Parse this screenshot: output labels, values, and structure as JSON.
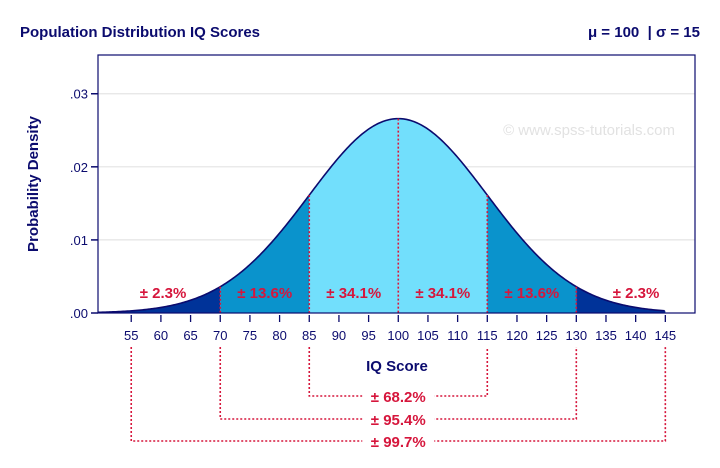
{
  "header": {
    "title": "Population Distribution IQ Scores",
    "params": "μ = 100  | σ = 15"
  },
  "watermark": "© www.spss-tutorials.com",
  "colors": {
    "tail": "#003399",
    "mid": "#0a93cc",
    "center": "#72dffc",
    "text": "#0b0b6e",
    "annotation": "#d6163c"
  },
  "chart_data": {
    "type": "area",
    "title": "Population Distribution IQ Scores",
    "subtitle": "μ = 100  | σ = 15",
    "distribution": {
      "family": "normal",
      "mean": 100,
      "sd": 15
    },
    "xlabel": "IQ Score",
    "ylabel": "Probability Density",
    "xlim": [
      49.4,
      150
    ],
    "ylim": [
      0,
      0.0353
    ],
    "x_ticks": [
      55,
      60,
      65,
      70,
      75,
      80,
      85,
      90,
      95,
      100,
      105,
      110,
      115,
      120,
      125,
      130,
      135,
      140,
      145
    ],
    "y_ticks": [
      {
        "value": 0,
        "label": ".00"
      },
      {
        "value": 0.01,
        "label": ".01"
      },
      {
        "value": 0.02,
        "label": ".02"
      },
      {
        "value": 0.03,
        "label": ".03"
      }
    ],
    "grid": "horizontal",
    "regions": [
      {
        "from": 49.4,
        "to": 70,
        "color": "tail",
        "label": "± 2.3%"
      },
      {
        "from": 70,
        "to": 85,
        "color": "mid",
        "label": "± 13.6%"
      },
      {
        "from": 85,
        "to": 100,
        "color": "center",
        "label": "± 34.1%"
      },
      {
        "from": 100,
        "to": 115,
        "color": "center",
        "label": "± 34.1%"
      },
      {
        "from": 115,
        "to": 130,
        "color": "mid",
        "label": "± 13.6%"
      },
      {
        "from": 130,
        "to": 145,
        "color": "tail",
        "label": "± 2.3%"
      }
    ],
    "dividers": [
      70,
      85,
      100,
      115,
      130
    ],
    "brackets": [
      {
        "from": 85,
        "to": 115,
        "label": "± 68.2%"
      },
      {
        "from": 70,
        "to": 130,
        "label": "± 95.4%"
      },
      {
        "from": 55,
        "to": 145,
        "label": "± 99.7%"
      }
    ]
  }
}
